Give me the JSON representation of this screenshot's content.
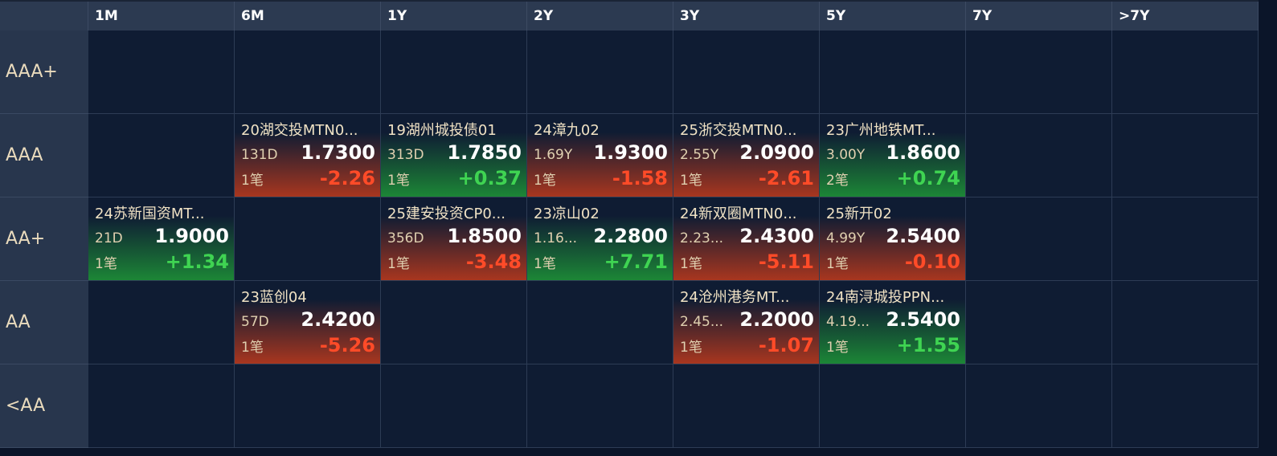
{
  "header": [
    "1M",
    "6M",
    "1Y",
    "2Y",
    "3Y",
    "5Y",
    "7Y",
    ">7Y"
  ],
  "rows": [
    {
      "label": "AAA+",
      "cells": [
        null,
        null,
        null,
        null,
        null,
        null,
        null,
        null
      ]
    },
    {
      "label": "AAA",
      "cells": [
        null,
        {
          "name": "20湖交投MTN0...",
          "term": "131D",
          "yield": "1.7300",
          "count": "1笔",
          "change": "-2.26"
        },
        {
          "name": "19湖州城投债01",
          "term": "313D",
          "yield": "1.7850",
          "count": "1笔",
          "change": "+0.37"
        },
        {
          "name": "24漳九02",
          "term": "1.69Y",
          "yield": "1.9300",
          "count": "1笔",
          "change": "-1.58"
        },
        {
          "name": "25浙交投MTN0...",
          "term": "2.55Y",
          "yield": "2.0900",
          "count": "1笔",
          "change": "-2.61"
        },
        {
          "name": "23广州地铁MT...",
          "term": "3.00Y",
          "yield": "1.8600",
          "count": "2笔",
          "change": "+0.74"
        },
        null,
        null
      ]
    },
    {
      "label": "AA+",
      "cells": [
        {
          "name": "24苏新国资MT...",
          "term": "21D",
          "yield": "1.9000",
          "count": "1笔",
          "change": "+1.34"
        },
        null,
        {
          "name": "25建安投资CP0...",
          "term": "356D",
          "yield": "1.8500",
          "count": "1笔",
          "change": "-3.48"
        },
        {
          "name": "23凉山02",
          "term": "1.16...",
          "yield": "2.2800",
          "count": "1笔",
          "change": "+7.71"
        },
        {
          "name": "24新双圈MTN0...",
          "term": "2.23...",
          "yield": "2.4300",
          "count": "1笔",
          "change": "-5.11"
        },
        {
          "name": "25新开02",
          "term": "4.99Y",
          "yield": "2.5400",
          "count": "1笔",
          "change": "-0.10"
        },
        null,
        null
      ]
    },
    {
      "label": "AA",
      "cells": [
        null,
        {
          "name": "23蓝创04",
          "term": "57D",
          "yield": "2.4200",
          "count": "1笔",
          "change": "-5.26"
        },
        null,
        null,
        {
          "name": "24沧州港务MT...",
          "term": "2.45...",
          "yield": "2.2000",
          "count": "1笔",
          "change": "-1.07"
        },
        {
          "name": "24南浔城投PPN...",
          "term": "4.19...",
          "yield": "2.5400",
          "count": "1笔",
          "change": "+1.55"
        },
        null,
        null
      ]
    },
    {
      "label": "<AA",
      "cells": [
        null,
        null,
        null,
        null,
        null,
        null,
        null,
        null
      ]
    }
  ]
}
